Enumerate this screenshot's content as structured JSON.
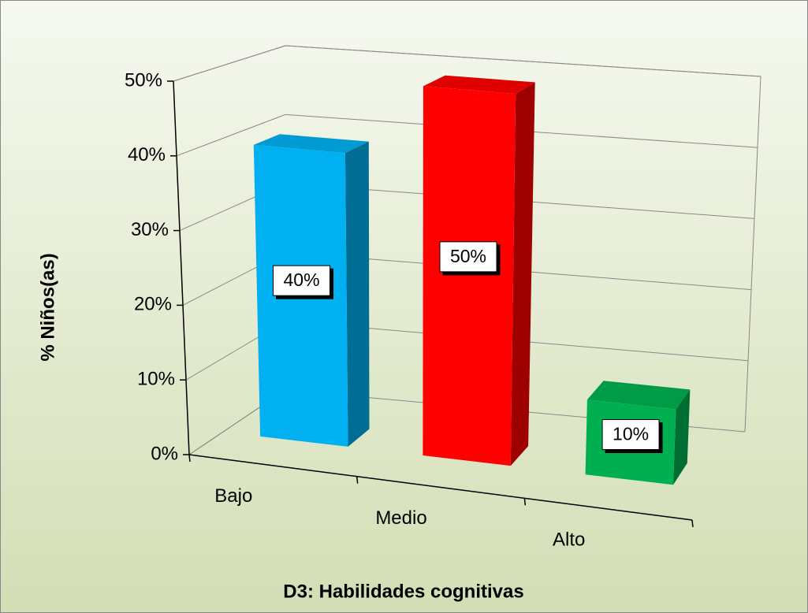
{
  "chart_data": {
    "type": "bar",
    "three_d": true,
    "y_label": "% Niños(as)",
    "x_label": "D3: Habilidades cognitivas",
    "categories": [
      "Bajo",
      "Medio",
      "Alto"
    ],
    "values": [
      40,
      50,
      10
    ],
    "value_labels": [
      "40%",
      "50%",
      "10%"
    ],
    "colors": [
      "#00b0f0",
      "#ff0000",
      "#00b050"
    ],
    "ylim": [
      0,
      50
    ],
    "yticks": [
      {
        "value": 0,
        "label": "0%"
      },
      {
        "value": 10,
        "label": "10%"
      },
      {
        "value": 20,
        "label": "20%"
      },
      {
        "value": 30,
        "label": "30%"
      },
      {
        "value": 40,
        "label": "40%"
      },
      {
        "value": 50,
        "label": "50%"
      }
    ],
    "grid": true
  }
}
